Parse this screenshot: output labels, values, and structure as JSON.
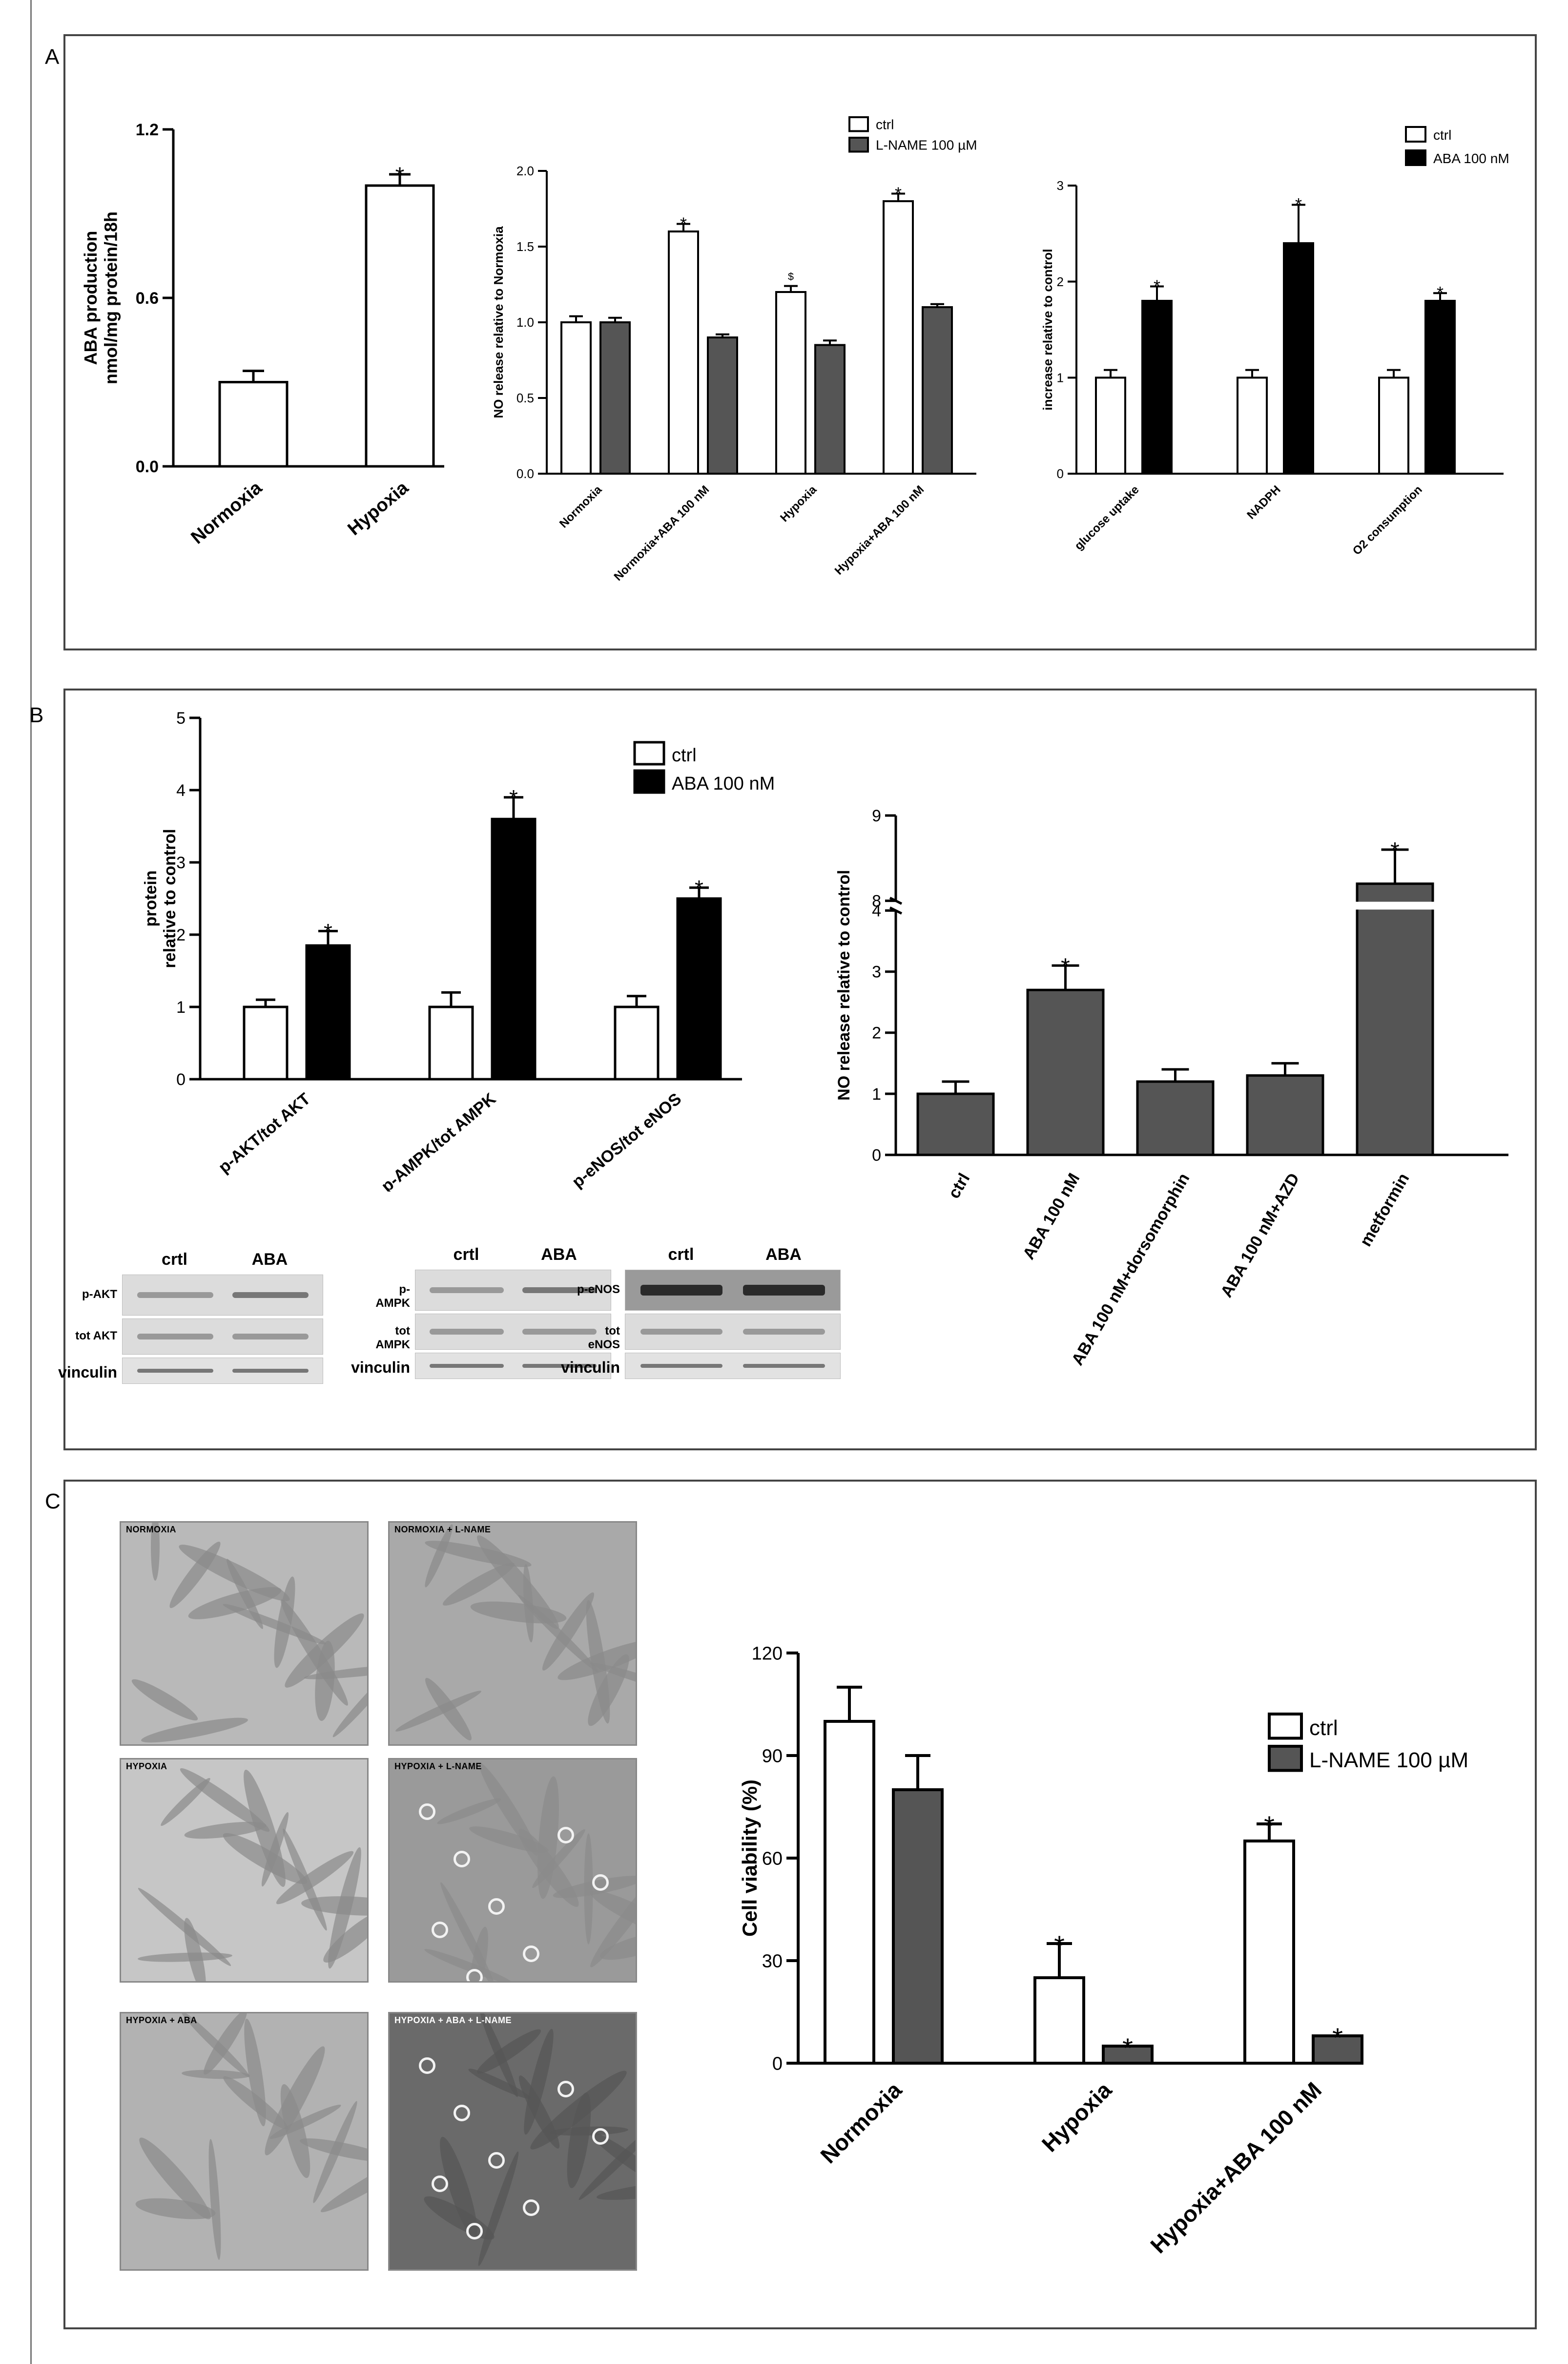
{
  "panels": {
    "a": "A",
    "b": "B",
    "c": "C"
  },
  "colors": {
    "ctrl": "#ffffff",
    "lname": "#555555",
    "aba": "#000000",
    "grey_bar": "#555555",
    "frame": "#444444"
  },
  "chart_data": [
    {
      "id": "chartA1",
      "type": "bar",
      "categories": [
        "Normoxia",
        "Hypoxia"
      ],
      "values": [
        0.3,
        1.0
      ],
      "errors": [
        0.04,
        0.04
      ],
      "stars": [
        "",
        "*"
      ],
      "ylabel": [
        "ABA production",
        "nmol/mg protein/18h"
      ],
      "ylim": [
        0,
        1.2
      ],
      "yticks": [
        "0.0",
        "0.6",
        "1.2"
      ],
      "ytick_values": [
        0,
        0.6,
        1.2
      ]
    },
    {
      "id": "chartA2",
      "type": "bar",
      "categories": [
        "Normoxia",
        "Normoxia+ABA 100 nM",
        "Hypoxia",
        "Hypoxia+ABA 100 nM"
      ],
      "series": [
        {
          "name": "ctrl",
          "values": [
            1.0,
            1.6,
            1.2,
            1.8
          ],
          "errors": [
            0.04,
            0.05,
            0.04,
            0.05
          ],
          "stars": [
            "",
            "*",
            "$",
            "*"
          ]
        },
        {
          "name": "L-NAME 100 µM",
          "values": [
            1.0,
            0.9,
            0.85,
            1.1
          ],
          "errors": [
            0.03,
            0.02,
            0.03,
            0.02
          ],
          "stars": [
            "",
            "",
            "",
            ""
          ]
        }
      ],
      "ylabel": "NO release relative to Normoxia",
      "ylim": [
        0,
        2.0
      ],
      "yticks": [
        "0.0",
        "0.5",
        "1.0",
        "1.5",
        "2.0"
      ],
      "ytick_values": [
        0,
        0.5,
        1.0,
        1.5,
        2.0
      ],
      "legend": [
        "ctrl",
        "L-NAME 100 µM"
      ]
    },
    {
      "id": "chartA3",
      "type": "bar",
      "categories": [
        "glucose uptake",
        "NADPH",
        "O2 consumption"
      ],
      "series": [
        {
          "name": "ctrl",
          "values": [
            1.0,
            1.0,
            1.0
          ],
          "errors": [
            0.08,
            0.08,
            0.08
          ],
          "stars": [
            "",
            "",
            ""
          ]
        },
        {
          "name": "ABA 100 nM",
          "values": [
            1.8,
            2.4,
            1.8
          ],
          "errors": [
            0.15,
            0.4,
            0.08
          ],
          "stars": [
            "*",
            "*",
            "*"
          ]
        }
      ],
      "ylabel": "increase relative to control",
      "ylim": [
        0,
        3
      ],
      "yticks": [
        "0",
        "1",
        "2",
        "3"
      ],
      "ytick_values": [
        0,
        1,
        2,
        3
      ],
      "legend": [
        "ctrl",
        "ABA 100 nM"
      ]
    },
    {
      "id": "chartB1",
      "type": "bar",
      "categories": [
        "p-AKT/tot AKT",
        "p-AMPK/tot AMPK",
        "p-eNOS/tot eNOS"
      ],
      "series": [
        {
          "name": "ctrl",
          "values": [
            1.0,
            1.0,
            1.0
          ],
          "errors": [
            0.1,
            0.2,
            0.15
          ],
          "stars": [
            "",
            "",
            ""
          ]
        },
        {
          "name": "ABA 100 nM",
          "values": [
            1.85,
            3.6,
            2.5
          ],
          "errors": [
            0.2,
            0.3,
            0.15
          ],
          "stars": [
            "*",
            "*",
            "*"
          ]
        }
      ],
      "ylabel": [
        "protein",
        "relative to control"
      ],
      "ylim": [
        0,
        5
      ],
      "yticks": [
        "0",
        "1",
        "2",
        "3",
        "4",
        "5"
      ],
      "ytick_values": [
        0,
        1,
        2,
        3,
        4,
        5
      ],
      "legend": [
        "ctrl",
        "ABA 100 nM"
      ]
    },
    {
      "id": "chartB2",
      "type": "bar",
      "categories": [
        "ctrl",
        "ABA 100 nM",
        "ABA 100 nM+dorsomorphin",
        "ABA 100 nM+AZD",
        "metformin"
      ],
      "values": [
        1.0,
        2.7,
        1.2,
        1.3,
        8.2
      ],
      "errors": [
        0.2,
        0.4,
        0.2,
        0.2,
        0.4
      ],
      "stars": [
        "",
        "*",
        "",
        "",
        "*"
      ],
      "ylabel": "NO release relative to control",
      "ylim": [
        0,
        9
      ],
      "axis_break": [
        4,
        8
      ],
      "yticks": [
        "0",
        "1",
        "2",
        "3",
        "4",
        "8",
        "9"
      ],
      "ytick_values": [
        0,
        1,
        2,
        3,
        4,
        8,
        9
      ]
    },
    {
      "id": "chartC",
      "type": "bar",
      "categories": [
        "Normoxia",
        "Hypoxia",
        "Hypoxia+ABA 100 nM"
      ],
      "series": [
        {
          "name": "ctrl",
          "values": [
            100,
            25,
            65
          ],
          "errors": [
            10,
            10,
            5
          ],
          "stars": [
            "",
            "*",
            "*"
          ]
        },
        {
          "name": "L-NAME 100 µM",
          "values": [
            80,
            5,
            8
          ],
          "errors": [
            10,
            0,
            0
          ],
          "stars": [
            "",
            "*",
            "*"
          ]
        }
      ],
      "ylabel": "Cell viability (%)",
      "ylim": [
        0,
        120
      ],
      "yticks": [
        "0",
        "30",
        "60",
        "90",
        "120"
      ],
      "ytick_values": [
        0,
        30,
        60,
        90,
        120
      ],
      "legend": [
        "ctrl",
        "L-NAME 100 µM"
      ]
    }
  ],
  "blots": [
    {
      "headers": [
        "crtl",
        "ABA"
      ],
      "rows": [
        "p-AKT",
        "tot AKT",
        "vinculin"
      ]
    },
    {
      "headers": [
        "crtl",
        "ABA"
      ],
      "rows": [
        "p-AMPK",
        "tot AMPK",
        "vinculin"
      ]
    },
    {
      "headers": [
        "crtl",
        "ABA"
      ],
      "rows": [
        "p-eNOS",
        "tot eNOS",
        "vinculin"
      ]
    }
  ],
  "micrographs": [
    "NORMOXIA",
    "NORMOXIA + L-NAME",
    "HYPOXIA",
    "HYPOXIA + L-NAME",
    "HYPOXIA + ABA",
    "HYPOXIA + ABA + L-NAME"
  ]
}
